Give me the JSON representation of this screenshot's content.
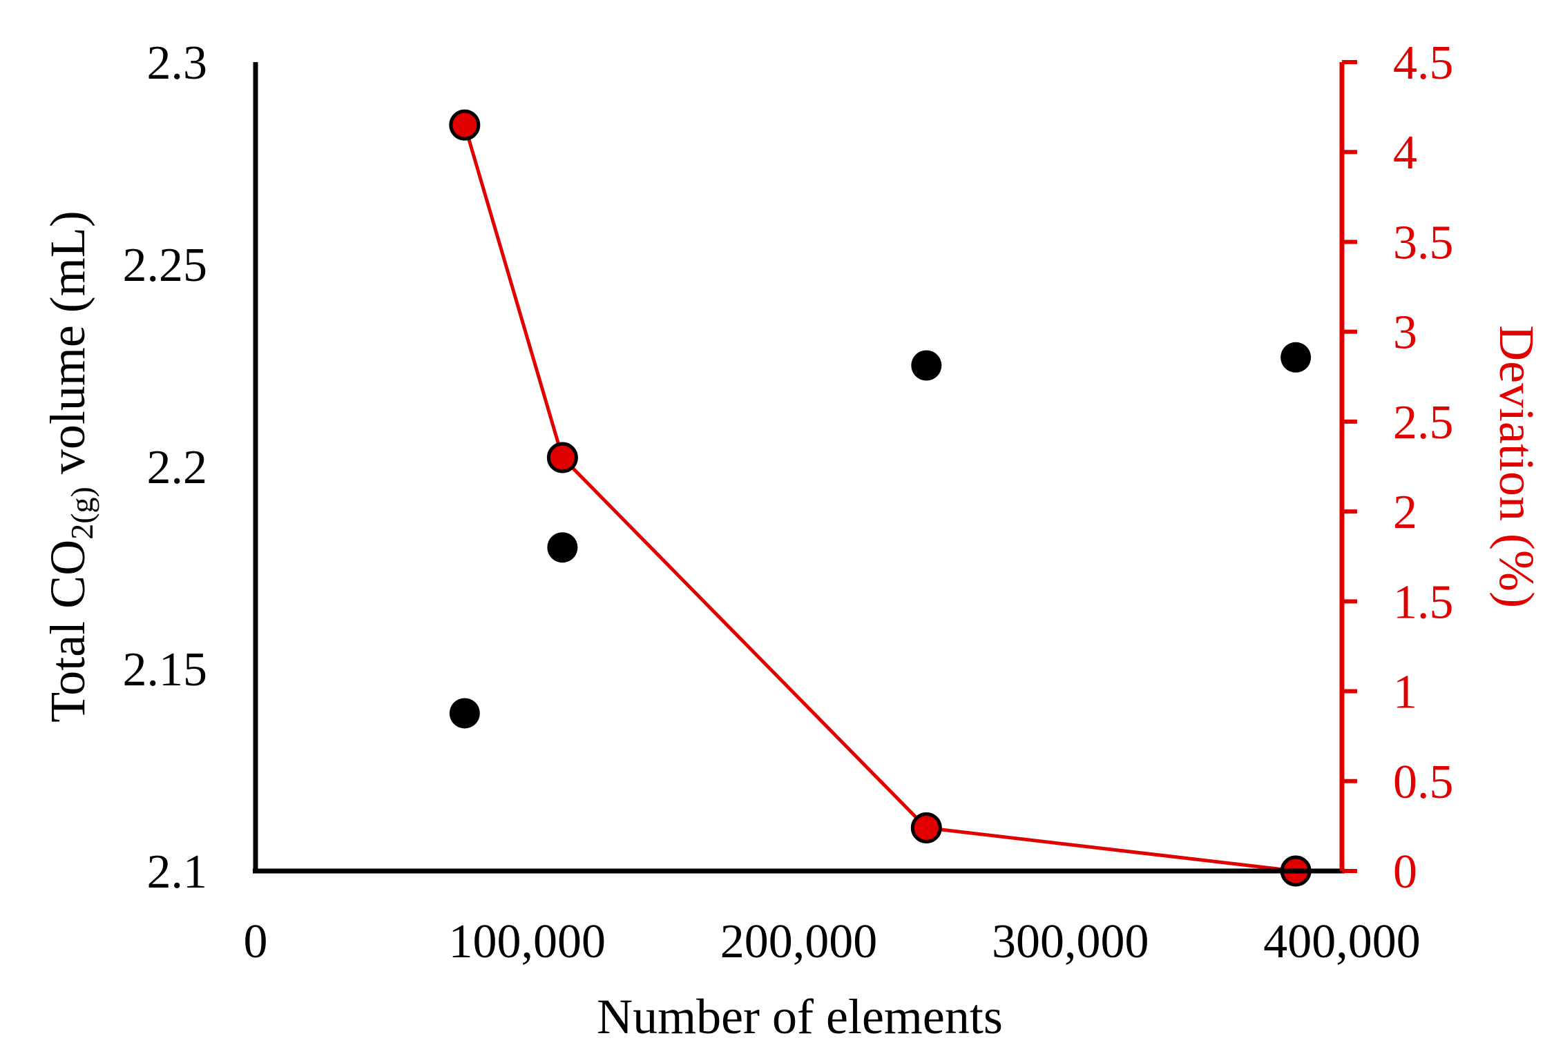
{
  "chart_data": {
    "type": "scatter",
    "xlabel": "Number of elements",
    "ylabel": {
      "prefix": "Total CO",
      "subscript": "2(g)",
      "suffix": " volume (mL)"
    },
    "y2label": "Deviation (%)",
    "xlim": [
      0,
      400000
    ],
    "ylim": [
      2.1,
      2.3
    ],
    "y2lim": [
      0,
      4.5
    ],
    "x_ticks": [
      {
        "value": 0,
        "label": "0"
      },
      {
        "value": 100000,
        "label": "100,000"
      },
      {
        "value": 200000,
        "label": "200,000"
      },
      {
        "value": 300000,
        "label": "300,000"
      },
      {
        "value": 400000,
        "label": "400,000"
      }
    ],
    "y_ticks": [
      {
        "value": 2.1,
        "label": "2.1"
      },
      {
        "value": 2.15,
        "label": "2.15"
      },
      {
        "value": 2.2,
        "label": "2.2"
      },
      {
        "value": 2.25,
        "label": "2.25"
      },
      {
        "value": 2.3,
        "label": "2.3"
      }
    ],
    "y2_ticks": [
      {
        "value": 0,
        "label": "0"
      },
      {
        "value": 0.5,
        "label": "0.5"
      },
      {
        "value": 1,
        "label": "1"
      },
      {
        "value": 1.5,
        "label": "1.5"
      },
      {
        "value": 2,
        "label": "2"
      },
      {
        "value": 2.5,
        "label": "2.5"
      },
      {
        "value": 3,
        "label": "3"
      },
      {
        "value": 3.5,
        "label": "3.5"
      },
      {
        "value": 4,
        "label": "4"
      },
      {
        "value": 4.5,
        "label": "4.5"
      }
    ],
    "series": [
      {
        "axis": "left",
        "kind": "scatter",
        "color": "#000000",
        "x": [
          77000,
          113000,
          247000,
          383000
        ],
        "y": [
          2.139,
          2.18,
          2.225,
          2.227
        ]
      },
      {
        "axis": "right",
        "kind": "line-marker",
        "color": "#e00000",
        "marker_fill": "#e00000",
        "marker_edge": "#000000",
        "x": [
          77000,
          113000,
          247000,
          383000
        ],
        "y": [
          4.15,
          2.3,
          0.24,
          0.0
        ]
      }
    ],
    "grid": false,
    "legend": "none"
  }
}
